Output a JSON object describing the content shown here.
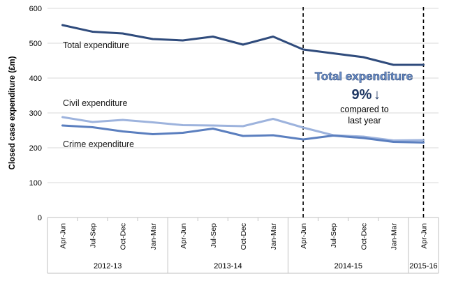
{
  "chart_data": {
    "type": "line",
    "title": "",
    "ylabel": "Closed case expenditure (£m)",
    "xlabel": "",
    "ylim": [
      0,
      600
    ],
    "yticks": [
      0,
      100,
      200,
      300,
      400,
      500,
      600
    ],
    "grid": true,
    "categories": [
      "Apr-Jun",
      "Jul-Sep",
      "Oct-Dec",
      "Jan-Mar",
      "Apr-Jun",
      "Jul-Sep",
      "Oct-Dec",
      "Jan-Mar",
      "Apr-Jun",
      "Jul-Sep",
      "Oct-Dec",
      "Jan-Mar",
      "Apr-Jun"
    ],
    "year_groups": [
      {
        "label": "2012-13",
        "start": 0,
        "end": 3
      },
      {
        "label": "2013-14",
        "start": 4,
        "end": 7
      },
      {
        "label": "2014-15",
        "start": 8,
        "end": 11
      },
      {
        "label": "2015-16",
        "start": 12,
        "end": 12
      }
    ],
    "series": [
      {
        "name": "Total expenditure",
        "color": "#2f4b7c",
        "values": [
          552,
          533,
          528,
          512,
          508,
          519,
          496,
          519,
          482,
          471,
          460,
          438,
          438
        ]
      },
      {
        "name": "Civil expenditure",
        "color": "#9db3dd",
        "values": [
          288,
          274,
          280,
          273,
          265,
          264,
          262,
          283,
          258,
          236,
          232,
          221,
          222
        ]
      },
      {
        "name": "Crime expenditure",
        "color": "#5b7fbf",
        "values": [
          264,
          259,
          247,
          239,
          243,
          255,
          234,
          236,
          224,
          235,
          228,
          217,
          215
        ]
      }
    ],
    "dashed_markers": [
      8,
      12
    ],
    "annotation": {
      "title": "Total expenditure",
      "percent": "9%",
      "arrow": "↓",
      "line1": "compared to",
      "line2": "last year"
    }
  }
}
